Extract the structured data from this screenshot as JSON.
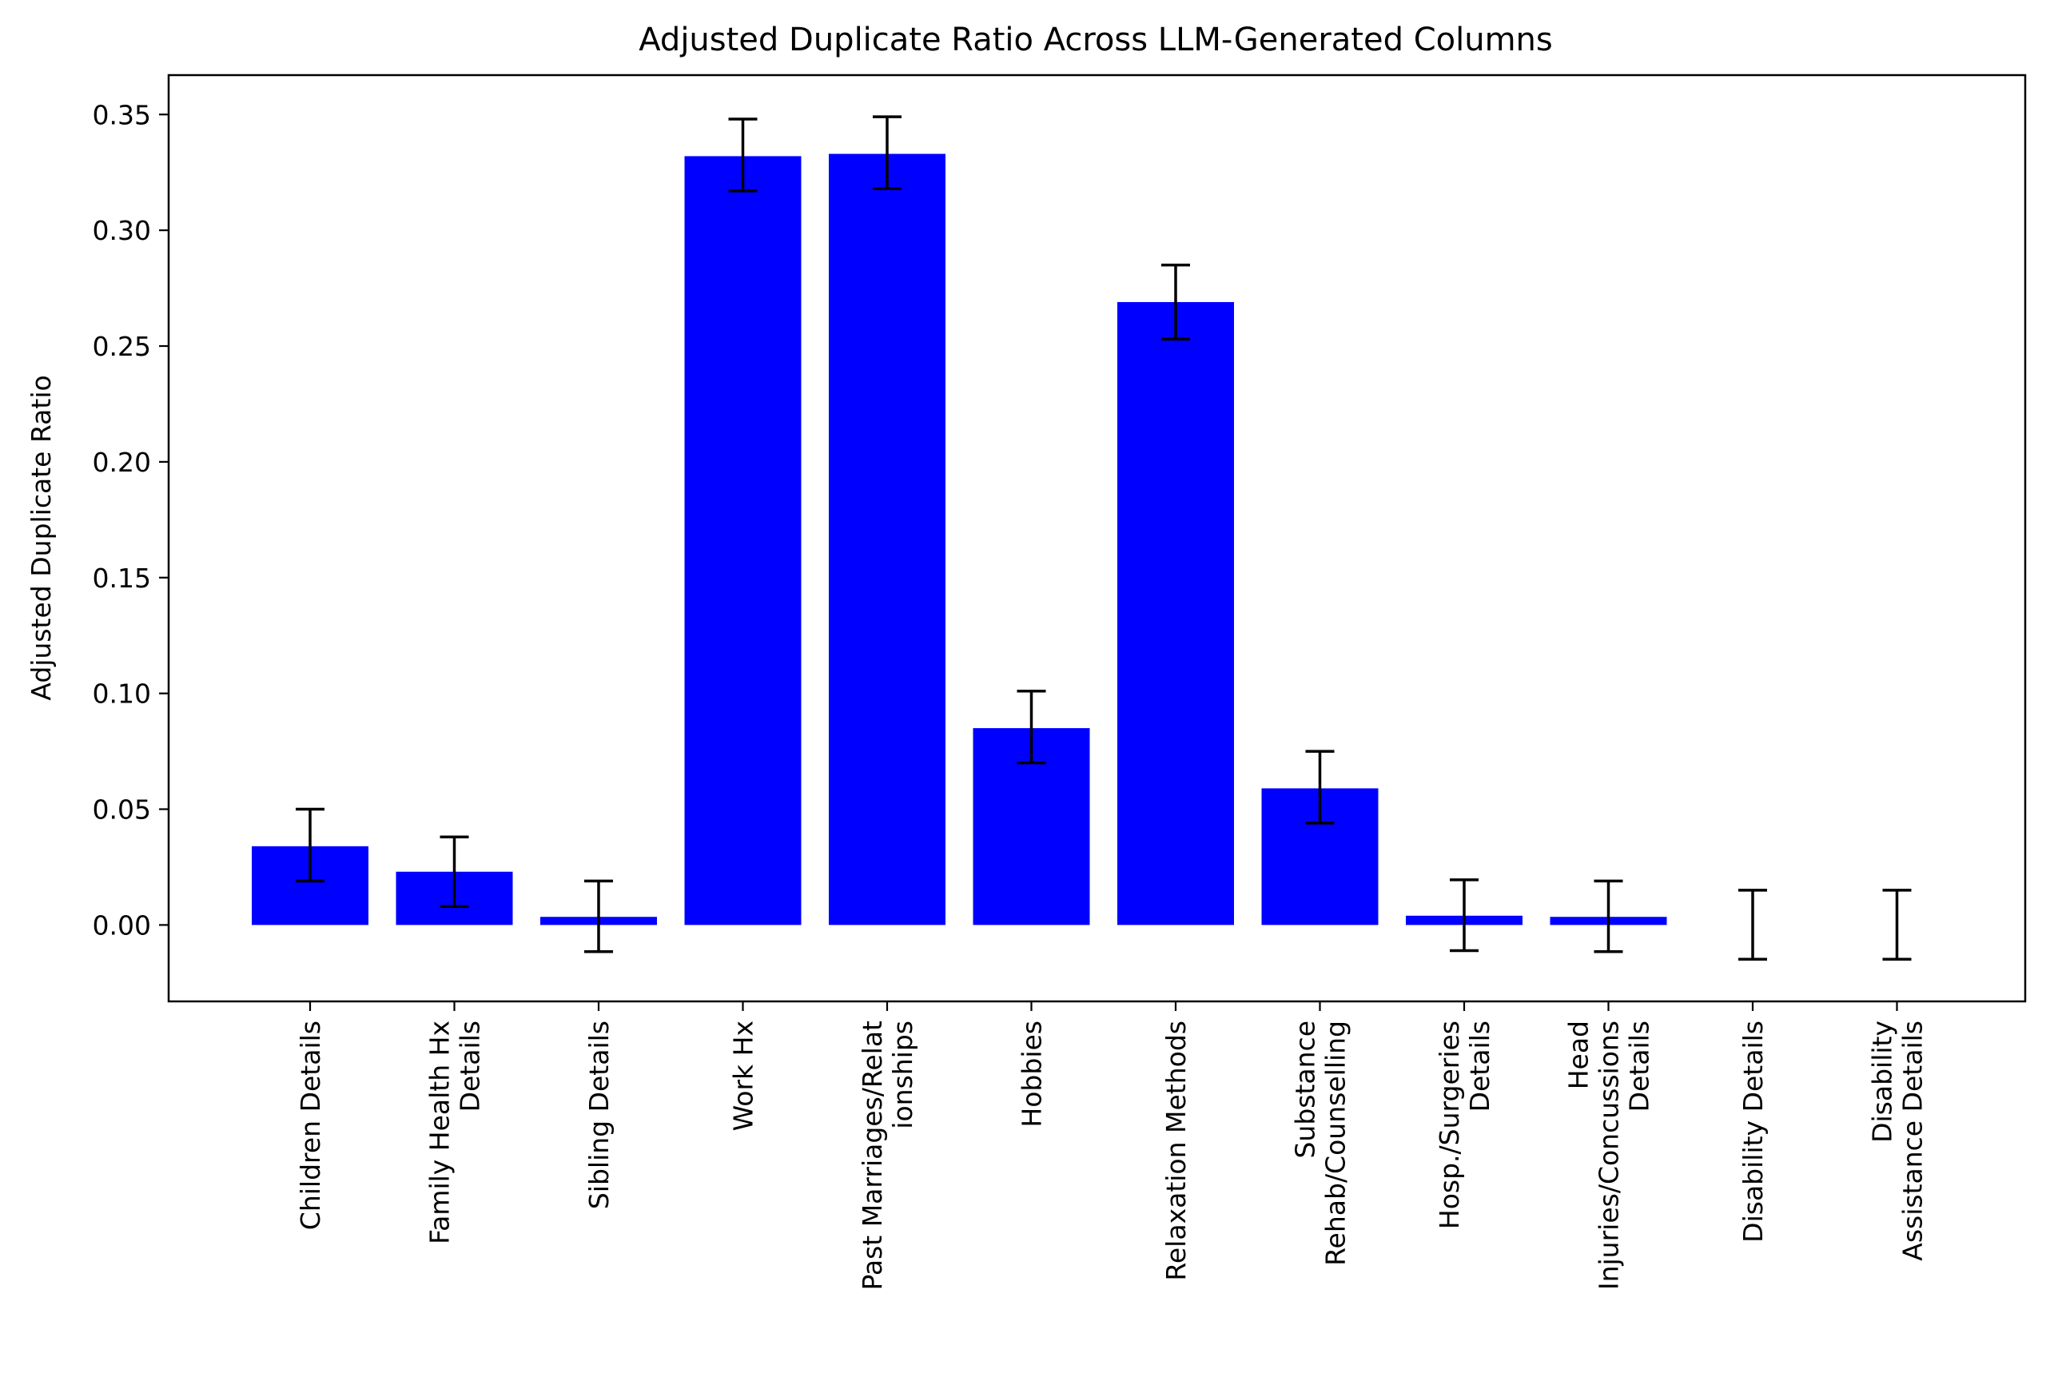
{
  "chart_data": {
    "type": "bar",
    "title": "Adjusted Duplicate Ratio Across LLM-Generated Columns",
    "xlabel": "",
    "ylabel": "Adjusted Duplicate Ratio",
    "ylim": [
      -0.033,
      0.367
    ],
    "yticks": [
      0.0,
      0.05,
      0.1,
      0.15,
      0.2,
      0.25,
      0.3,
      0.35
    ],
    "ytick_labels": [
      "0.00",
      "0.05",
      "0.10",
      "0.15",
      "0.20",
      "0.25",
      "0.30",
      "0.35"
    ],
    "categories": [
      [
        "Children Details"
      ],
      [
        "Family Health Hx",
        "Details"
      ],
      [
        "Sibling Details"
      ],
      [
        "Work Hx"
      ],
      [
        "Past Marriages/Relat",
        "ionships"
      ],
      [
        "Hobbies"
      ],
      [
        "Relaxation Methods"
      ],
      [
        "Substance",
        "Rehab/Counselling"
      ],
      [
        "Hosp./Surgeries",
        "Details"
      ],
      [
        "Head",
        "Injuries/Concussions",
        "Details"
      ],
      [
        "Disability Details"
      ],
      [
        "Disability",
        "Assistance Details"
      ]
    ],
    "values": [
      0.034,
      0.023,
      0.0035,
      0.332,
      0.333,
      0.085,
      0.269,
      0.059,
      0.004,
      0.0035,
      0.0,
      0.0
    ],
    "error_low": [
      0.019,
      0.008,
      -0.0115,
      0.317,
      0.318,
      0.07,
      0.253,
      0.044,
      -0.0111,
      -0.0115,
      -0.0148,
      -0.0148
    ],
    "error_high": [
      0.05,
      0.038,
      0.019,
      0.348,
      0.349,
      0.101,
      0.285,
      0.075,
      0.0195,
      0.019,
      0.015,
      0.015
    ],
    "bar_color": "#0000ff",
    "error_color": "#000000",
    "grid": false,
    "legend": false
  }
}
